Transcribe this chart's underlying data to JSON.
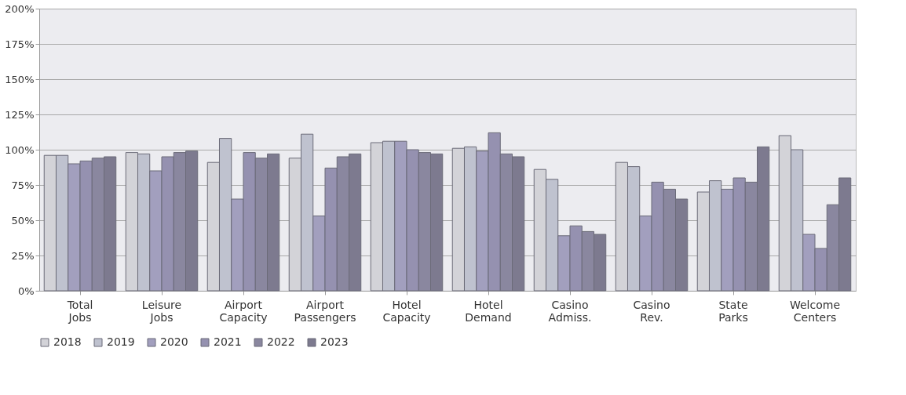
{
  "chart_data": {
    "type": "bar",
    "categories": [
      "Total Jobs",
      "Leisure Jobs",
      "Airport Capacity",
      "Airport Passengers",
      "Hotel Capacity",
      "Hotel Demand",
      "Casino Admiss.",
      "Casino Rev.",
      "State Parks",
      "Welcome Centers"
    ],
    "series": [
      {
        "name": "2018",
        "color": "#d3d3d8",
        "values": [
          96,
          98,
          91,
          94,
          105,
          101,
          86,
          91,
          70,
          110
        ]
      },
      {
        "name": "2019",
        "color": "#bfc2cf",
        "values": [
          96,
          97,
          108,
          111,
          106,
          102,
          79,
          88,
          78,
          100
        ]
      },
      {
        "name": "2020",
        "color": "#a29fbe",
        "values": [
          90,
          85,
          65,
          53,
          106,
          99,
          39,
          53,
          72,
          40
        ]
      },
      {
        "name": "2021",
        "color": "#9591b0",
        "values": [
          92,
          95,
          98,
          87,
          100,
          112,
          46,
          77,
          80,
          30
        ]
      },
      {
        "name": "2022",
        "color": "#8a879f",
        "values": [
          94,
          98,
          94,
          95,
          98,
          97,
          42,
          72,
          77,
          61
        ]
      },
      {
        "name": "2023",
        "color": "#7d7a8f",
        "values": [
          95,
          99,
          97,
          97,
          97,
          95,
          40,
          65,
          102,
          80
        ]
      }
    ],
    "ylim": [
      0,
      200
    ],
    "yticks": [
      {
        "value": 0,
        "label": "0%"
      },
      {
        "value": 25,
        "label": "25%"
      },
      {
        "value": 50,
        "label": "50%"
      },
      {
        "value": 75,
        "label": "75%"
      },
      {
        "value": 100,
        "label": "100%"
      },
      {
        "value": 125,
        "label": "125%"
      },
      {
        "value": 150,
        "label": "150%"
      },
      {
        "value": 175,
        "label": "175%"
      },
      {
        "value": 200,
        "label": "200%"
      }
    ],
    "grid": "y",
    "legend": "bottom"
  }
}
